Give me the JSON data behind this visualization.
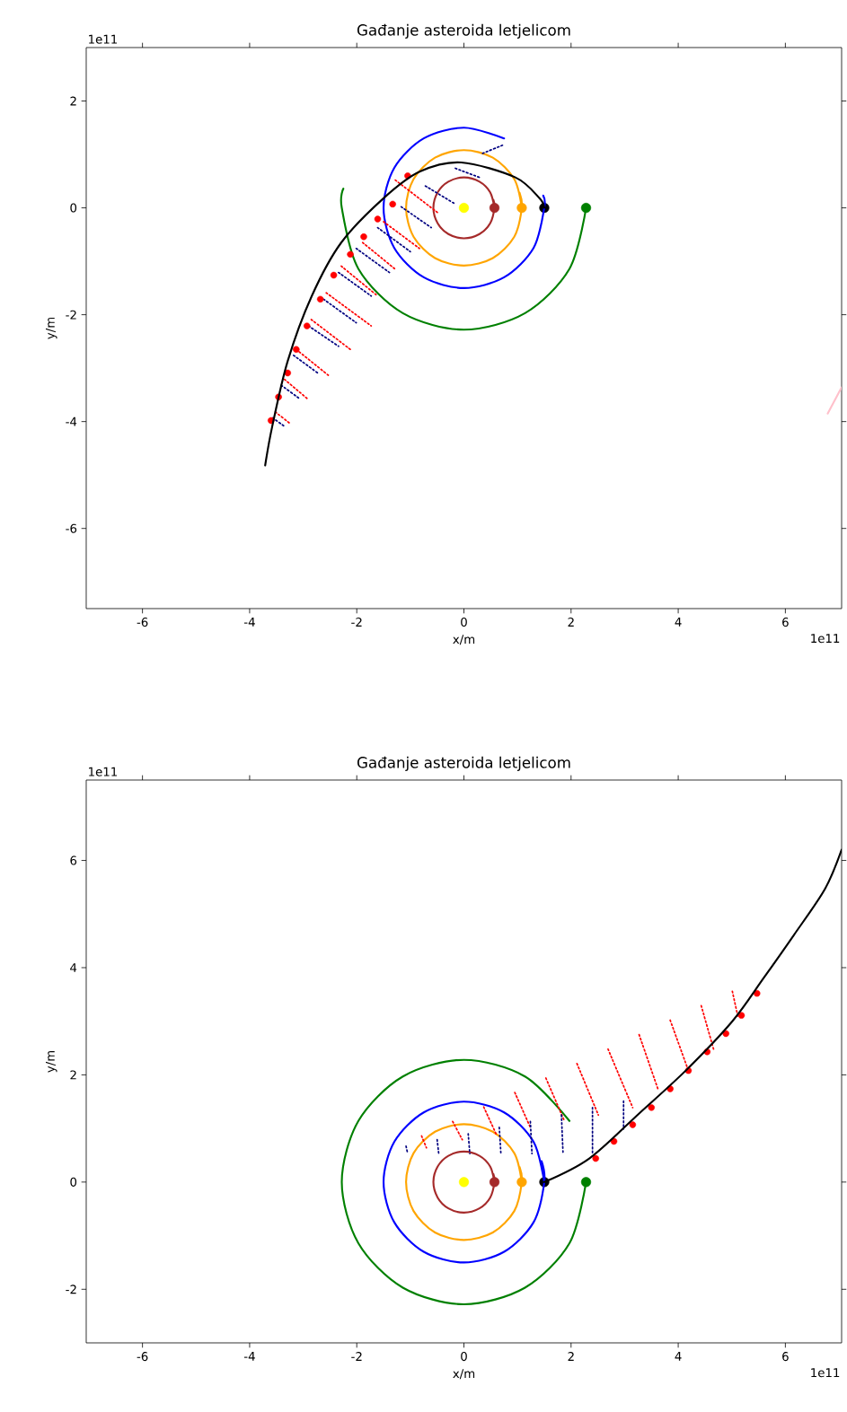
{
  "chart_data": [
    {
      "type": "line",
      "title": "Gađanje asteroida letjelicom",
      "xlabel": "x/m",
      "ylabel": "y/m",
      "annotations": [
        "1e11",
        "1e11"
      ],
      "xlim": [
        -7.05,
        7.05
      ],
      "ylim": [
        -7.5,
        3
      ],
      "xticks": [
        -6,
        -4,
        -2,
        0,
        2,
        4,
        6
      ],
      "yticks": [
        -6,
        -4,
        -2,
        0,
        2
      ],
      "series": [
        {
          "type": "line",
          "color": "#a52a2a",
          "x": [
            0.57,
            0.49,
            0.29,
            0,
            -0.29,
            -0.49,
            -0.57,
            -0.49,
            -0.29,
            0,
            0.29,
            0.49,
            0.57,
            0.55
          ],
          "values": [
            0,
            0.29,
            0.49,
            0.57,
            0.49,
            0.29,
            0,
            -0.29,
            -0.49,
            -0.57,
            -0.49,
            -0.29,
            0,
            0.15
          ]
        },
        {
          "type": "line",
          "color": "#ffa500",
          "x": [
            1.08,
            0.94,
            0.54,
            0,
            -0.54,
            -0.94,
            -1.08,
            -0.94,
            -0.54,
            0,
            0.54,
            0.94,
            1.08,
            1.04
          ],
          "values": [
            0,
            0.54,
            0.94,
            1.08,
            0.94,
            0.54,
            0,
            -0.54,
            -0.94,
            -1.08,
            -0.94,
            -0.54,
            0,
            0.28
          ]
        },
        {
          "type": "line",
          "color": "#0000ff",
          "x": [
            0.75,
            0,
            -0.75,
            -1.3,
            -1.5,
            -1.3,
            -0.75,
            0,
            0.75,
            1.3,
            1.5,
            1.48
          ],
          "values": [
            1.3,
            1.5,
            1.3,
            0.75,
            0,
            -0.75,
            -1.3,
            -1.5,
            -1.3,
            -0.75,
            0,
            0.23
          ]
        },
        {
          "type": "line",
          "color": "#008000",
          "x": [
            2.28,
            1.97,
            1.14,
            0,
            -1.14,
            -1.97,
            -2.28,
            -2.25
          ],
          "values": [
            0,
            -1.14,
            -1.97,
            -2.28,
            -1.97,
            -1.14,
            0,
            0.36
          ]
        },
        {
          "type": "line",
          "color": "#ff0000",
          "line_style": "dotted",
          "x": [
            -3.52,
            -3.24,
            null,
            -3.35,
            -2.9,
            null,
            -3.13,
            -2.51,
            null,
            -2.85,
            -2.12,
            null,
            -2.57,
            -1.73,
            null,
            -2.29,
            -1.61,
            null,
            -1.89,
            -1.28,
            null,
            -1.5,
            -0.83,
            null,
            -1.28,
            -0.49
          ],
          "values": [
            -3.82,
            -4.04,
            null,
            -3.21,
            -3.59,
            null,
            -2.65,
            -3.15,
            null,
            -2.09,
            -2.65,
            null,
            -1.59,
            -2.21,
            null,
            -1.09,
            -1.65,
            null,
            -0.65,
            -1.15,
            null,
            -0.26,
            -0.76,
            null,
            0.52,
            -0.09
          ]
        },
        {
          "type": "line",
          "color": "#000080",
          "line_style": "dotted",
          "x": [
            -3.57,
            -3.35,
            null,
            -3.41,
            -3.07,
            null,
            -3.18,
            -2.73,
            null,
            -2.9,
            -2.34,
            null,
            -2.62,
            -2.01,
            null,
            -2.34,
            -1.73,
            null,
            -2.01,
            -1.39,
            null,
            -1.61,
            -1.0,
            null,
            -1.17,
            -0.61,
            null,
            -0.72,
            -0.16,
            null,
            -0.16,
            0.29,
            null,
            0.35,
            0.74
          ],
          "values": [
            -3.93,
            -4.09,
            null,
            -3.32,
            -3.57,
            null,
            -2.76,
            -3.09,
            null,
            -2.21,
            -2.59,
            null,
            -1.71,
            -2.15,
            null,
            -1.21,
            -1.65,
            null,
            -0.76,
            -1.21,
            null,
            -0.37,
            -0.82,
            null,
            0.02,
            -0.37,
            null,
            0.41,
            0.07,
            null,
            0.74,
            0.57,
            null,
            1.02,
            1.18
          ]
        },
        {
          "type": "scatter",
          "color": "#ff0000",
          "x": [
            -3.6,
            -3.46,
            -3.29,
            -3.13,
            -2.93,
            -2.68,
            -2.43,
            -2.12,
            -1.87,
            -1.61,
            -1.33,
            -1.05
          ],
          "values": [
            -3.98,
            -3.54,
            -3.09,
            -2.65,
            -2.21,
            -1.71,
            -1.26,
            -0.87,
            -0.54,
            -0.21,
            0.07,
            0.6
          ]
        },
        {
          "type": "line",
          "color": "#000000",
          "x": [
            1.5,
            1.41,
            0.96,
            -0.05,
            -0.82,
            -1.5,
            -2.29,
            -2.84,
            -3.29,
            -3.58,
            -3.71
          ],
          "values": [
            0,
            0.18,
            0.57,
            0.85,
            0.68,
            0.18,
            -0.65,
            -1.65,
            -2.87,
            -4.1,
            -4.82
          ]
        },
        {
          "type": "scatter",
          "colors": [
            "#ffff00",
            "#a52a2a",
            "#ffa500",
            "#000000",
            "#008000"
          ],
          "x": [
            0,
            0.57,
            1.08,
            1.5,
            2.28
          ],
          "values": [
            0,
            0,
            0,
            0,
            0
          ]
        },
        {
          "type": "line",
          "color": "#ffc0cb",
          "x": [
            6.79,
            7.05
          ],
          "values": [
            -3.85,
            -3.36
          ]
        }
      ]
    },
    {
      "type": "line",
      "title": "Gađanje asteroida letjelicom",
      "xlabel": "x/m",
      "ylabel": "y/m",
      "annotations": [
        "1e11",
        "1e11"
      ],
      "xlim": [
        -7.05,
        7.05
      ],
      "ylim": [
        -3,
        7.5
      ],
      "xticks": [
        -6,
        -4,
        -2,
        0,
        2,
        4,
        6
      ],
      "yticks": [
        -2,
        0,
        2,
        4,
        6
      ],
      "series": [
        {
          "type": "line",
          "color": "#a52a2a",
          "x": [
            0.57,
            0.49,
            0.29,
            0,
            -0.29,
            -0.49,
            -0.57,
            -0.49,
            -0.29,
            0,
            0.29,
            0.49,
            0.57,
            0.55
          ],
          "values": [
            0,
            0.29,
            0.49,
            0.57,
            0.49,
            0.29,
            0,
            -0.29,
            -0.49,
            -0.57,
            -0.49,
            -0.29,
            0,
            0.15
          ]
        },
        {
          "type": "line",
          "color": "#ffa500",
          "x": [
            1.08,
            0.94,
            0.54,
            0,
            -0.54,
            -0.94,
            -1.08,
            -0.94,
            -0.54,
            0,
            0.54,
            0.94,
            1.08,
            1.04
          ],
          "values": [
            0,
            0.54,
            0.94,
            1.08,
            0.94,
            0.54,
            0,
            -0.54,
            -0.94,
            -1.08,
            -0.94,
            -0.54,
            0,
            0.28
          ]
        },
        {
          "type": "line",
          "color": "#0000ff",
          "x": [
            1.5,
            1.3,
            0.75,
            0,
            -0.75,
            -1.3,
            -1.5,
            -1.3,
            -0.75,
            0,
            0.75,
            1.3,
            1.5,
            1.45
          ],
          "values": [
            0,
            0.75,
            1.3,
            1.5,
            1.3,
            0.75,
            0,
            -0.75,
            -1.3,
            -1.5,
            -1.3,
            -0.75,
            0,
            0.39
          ]
        },
        {
          "type": "line",
          "color": "#008000",
          "x": [
            2.28,
            1.97,
            1.14,
            0,
            -1.14,
            -1.97,
            -2.28,
            -1.97,
            -1.14,
            0,
            1.14,
            1.97
          ],
          "values": [
            0,
            -1.14,
            -1.97,
            -2.28,
            -1.97,
            -1.14,
            0,
            1.14,
            1.97,
            2.28,
            1.97,
            1.14
          ]
        },
        {
          "type": "line",
          "color": "#ff0000",
          "line_style": "dotted",
          "x": [
            -0.79,
            -0.7,
            null,
            -0.21,
            -0.03,
            null,
            0.37,
            0.6,
            null,
            0.95,
            1.24,
            null,
            1.53,
            1.88,
            null,
            2.11,
            2.51,
            null,
            2.69,
            3.15,
            null,
            3.27,
            3.62,
            null,
            3.85,
            4.19,
            null,
            4.43,
            4.66,
            null,
            5.01,
            5.12
          ],
          "values": [
            0.86,
            0.64,
            null,
            1.13,
            0.79,
            null,
            1.4,
            0.9,
            null,
            1.67,
            1.02,
            null,
            1.94,
            1.13,
            null,
            2.21,
            1.25,
            null,
            2.48,
            1.39,
            null,
            2.75,
            1.74,
            null,
            3.02,
            2.08,
            null,
            3.29,
            2.48,
            null,
            3.56,
            3.06
          ]
        },
        {
          "type": "line",
          "color": "#000080",
          "line_style": "dotted",
          "x": [
            -1.08,
            -1.05,
            null,
            -0.5,
            -0.47,
            null,
            0.08,
            0.11,
            null,
            0.66,
            0.69,
            null,
            1.24,
            1.27,
            null,
            1.82,
            1.85,
            null,
            2.4,
            2.4,
            null,
            2.98,
            2.98
          ],
          "values": [
            0.67,
            0.53,
            null,
            0.79,
            0.53,
            null,
            0.9,
            0.53,
            null,
            1.02,
            0.53,
            null,
            1.13,
            0.53,
            null,
            1.25,
            0.53,
            null,
            1.39,
            0.53,
            null,
            1.51,
            0.99
          ]
        },
        {
          "type": "scatter",
          "color": "#ff0000",
          "x": [
            2.46,
            2.8,
            3.15,
            3.5,
            3.85,
            4.19,
            4.54,
            4.89,
            5.18,
            5.47
          ],
          "values": [
            0.44,
            0.76,
            1.07,
            1.39,
            1.74,
            2.08,
            2.43,
            2.77,
            3.11,
            3.52
          ]
        },
        {
          "type": "line",
          "color": "#000000",
          "x": [
            1.5,
            2.34,
            3.27,
            4.14,
            5.01,
            5.59,
            6.16,
            6.74,
            7.05
          ],
          "values": [
            0,
            0.44,
            1.28,
            2.08,
            3.0,
            3.8,
            4.61,
            5.47,
            6.2
          ]
        },
        {
          "type": "scatter",
          "colors": [
            "#ffff00",
            "#a52a2a",
            "#ffa500",
            "#000000",
            "#008000"
          ],
          "x": [
            0,
            0.57,
            1.08,
            1.5,
            2.28
          ],
          "values": [
            0,
            0,
            0,
            0,
            0
          ]
        }
      ]
    }
  ]
}
